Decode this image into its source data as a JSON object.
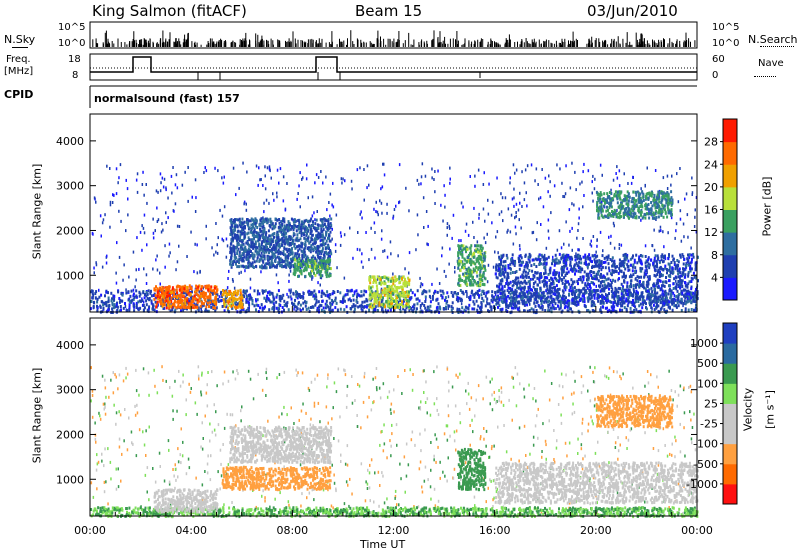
{
  "header": {
    "station": "King Salmon (fitACF)",
    "beam": "Beam 15",
    "date": "03/Jun/2010"
  },
  "top_panels": {
    "nsky_label": "N.Sky",
    "nsky_ticks": [
      "10^5",
      "10^0"
    ],
    "nsearch_label": "N.Search",
    "nsearch_ticks": [
      "10^5",
      "10^0"
    ],
    "freq_label": "Freq.",
    "freq_unit": "[MHz]",
    "freq_ticks": [
      "18",
      "8"
    ],
    "nave_label": "Nave",
    "nave_ticks": [
      "60",
      "0"
    ],
    "cpid_label": "CPID",
    "cpid_text": "normalsound (fast) 157"
  },
  "colors": {
    "power_scale": [
      "#1a1aff",
      "#1f3fb0",
      "#2e6ea0",
      "#3aa060",
      "#b8e03a",
      "#f0a000",
      "#ff6a00",
      "#ff1a00"
    ],
    "velocity_scale": [
      "#ff1010",
      "#ff6a00",
      "#ffa040",
      "#c8c8c8",
      "#c8c8c8",
      "#7ee05a",
      "#3a9a50",
      "#2a6aa0",
      "#1f3fc0"
    ]
  },
  "chart_data": [
    {
      "type": "heatmap",
      "title": "",
      "quantity": "Power",
      "ylabel": "Slant Range [km]",
      "xlabel": "Time UT",
      "y_ticks": [
        1000,
        2000,
        3000,
        4000
      ],
      "x_ticks": [
        "00:00",
        "04:00",
        "08:00",
        "12:00",
        "16:00",
        "20:00",
        "00:00"
      ],
      "ylim": [
        180,
        4600
      ],
      "xlim_hours": [
        0,
        24
      ],
      "colorbar_label": "Power [dB]",
      "colorbar_ticks": [
        "4",
        "8",
        "12",
        "16",
        "20",
        "24",
        "28"
      ],
      "scatter_regions": [
        {
          "t0": 0,
          "t1": 24,
          "r0": 200,
          "r1": 700,
          "value": 6
        },
        {
          "t0": 2.5,
          "t1": 5,
          "r0": 300,
          "r1": 800,
          "value": 26
        },
        {
          "t0": 5.2,
          "t1": 6.0,
          "r0": 300,
          "r1": 700,
          "value": 22
        },
        {
          "t0": 5.5,
          "t1": 9.5,
          "r0": 1200,
          "r1": 2300,
          "value": 8
        },
        {
          "t0": 8,
          "t1": 9.5,
          "r0": 1000,
          "r1": 1400,
          "value": 14
        },
        {
          "t0": 11,
          "t1": 12.6,
          "r0": 300,
          "r1": 1000,
          "value": 18
        },
        {
          "t0": 14.5,
          "t1": 15.6,
          "r0": 800,
          "r1": 1700,
          "value": 14
        },
        {
          "t0": 16,
          "t1": 24,
          "r0": 400,
          "r1": 1500,
          "value": 6
        },
        {
          "t0": 20,
          "t1": 23,
          "r0": 2300,
          "r1": 2900,
          "value": 12
        }
      ]
    },
    {
      "type": "heatmap",
      "title": "",
      "quantity": "Velocity",
      "ylabel": "Slant Range [km]",
      "xlabel": "Time UT",
      "y_ticks": [
        1000,
        2000,
        3000,
        4000
      ],
      "x_ticks": [
        "00:00",
        "04:00",
        "08:00",
        "12:00",
        "16:00",
        "20:00",
        "00:00"
      ],
      "ylim": [
        180,
        4600
      ],
      "xlim_hours": [
        0,
        24
      ],
      "colorbar_label": "Velocity",
      "colorbar_unit": "[m s⁻¹]",
      "colorbar_ticks": [
        "-1000",
        "-500",
        "-100",
        "-25",
        "25",
        "100",
        "500",
        "1000"
      ],
      "scatter_regions": [
        {
          "t0": 0,
          "t1": 24,
          "r0": 200,
          "r1": 400,
          "value": 100
        },
        {
          "t0": 2.5,
          "t1": 5,
          "r0": 300,
          "r1": 800,
          "value": 0
        },
        {
          "t0": 5.2,
          "t1": 9.5,
          "r0": 800,
          "r1": 1300,
          "value": -300
        },
        {
          "t0": 5.5,
          "t1": 9.5,
          "r0": 1400,
          "r1": 2200,
          "value": 0
        },
        {
          "t0": 14.5,
          "t1": 15.6,
          "r0": 800,
          "r1": 1700,
          "value": 300
        },
        {
          "t0": 20,
          "t1": 23,
          "r0": 2200,
          "r1": 2900,
          "value": -300
        },
        {
          "t0": 16,
          "t1": 24,
          "r0": 500,
          "r1": 1400,
          "value": 0
        }
      ]
    }
  ]
}
